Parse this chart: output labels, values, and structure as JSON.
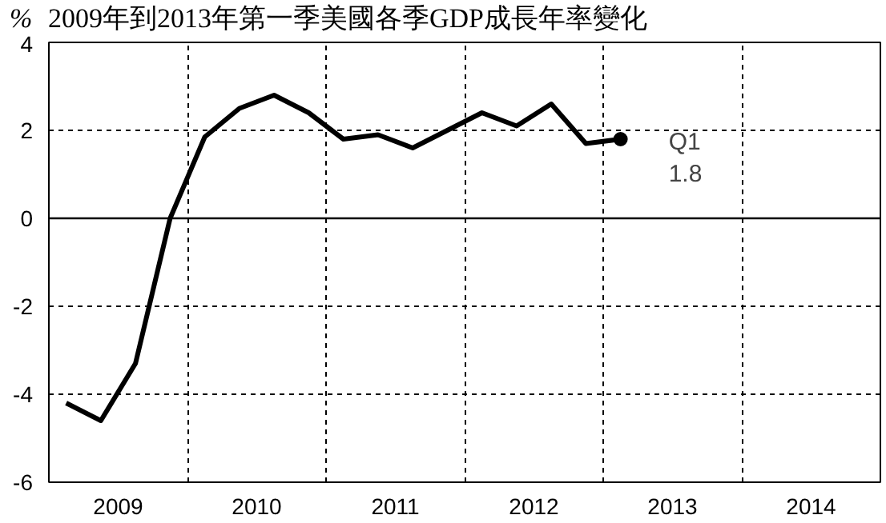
{
  "chart_data": {
    "type": "line",
    "title": "2009年到2013年第一季美國各季GDP成長年率變化",
    "ylabel": "%",
    "x": [
      2009.125,
      2009.375,
      2009.625,
      2009.875,
      2010.125,
      2010.375,
      2010.625,
      2010.875,
      2011.125,
      2011.375,
      2011.625,
      2011.875,
      2012.125,
      2012.375,
      2012.625,
      2012.875,
      2013.125
    ],
    "series": [
      {
        "color": "#000000",
        "values": [
          -4.2,
          -4.6,
          -3.3,
          0.0,
          1.85,
          2.5,
          2.8,
          2.4,
          1.8,
          1.9,
          1.6,
          2.0,
          2.4,
          2.1,
          2.6,
          1.7,
          1.8
        ]
      },
      {
        "type": "scatter",
        "color": "#000000",
        "marker": "circle",
        "x": [
          2013.125
        ],
        "values": [
          1.8
        ]
      }
    ],
    "xlim": [
      2009,
      2015
    ],
    "xticks": [
      {
        "value": 2009.5,
        "label": "2009"
      },
      {
        "value": 2010.5,
        "label": "2010"
      },
      {
        "value": 2011.5,
        "label": "2011"
      },
      {
        "value": 2012.5,
        "label": "2012"
      },
      {
        "value": 2013.5,
        "label": "2013"
      },
      {
        "value": 2014.5,
        "label": "2014"
      }
    ],
    "ylim": [
      -6,
      4
    ],
    "yticks": [
      -6,
      -4,
      -2,
      0,
      2,
      4
    ],
    "ref_lines": [
      {
        "axis": "y",
        "value": 0,
        "color": "#000000",
        "line_style": "solid"
      }
    ],
    "annotations": [
      {
        "text": "Q1\n1.8",
        "x": 2013.125,
        "y": 1.8
      }
    ],
    "grid": true,
    "marker": "none",
    "line_style": "solid"
  }
}
